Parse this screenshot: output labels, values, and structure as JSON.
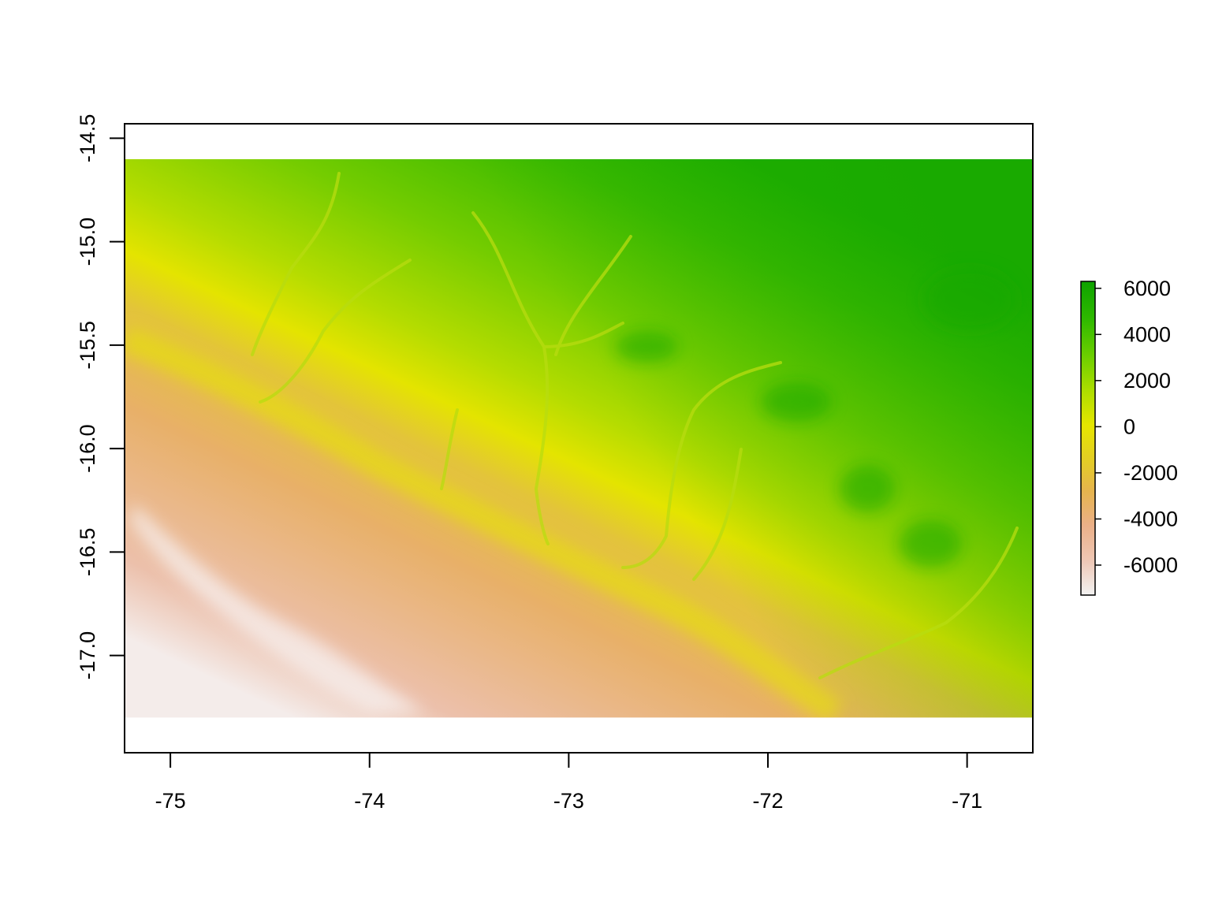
{
  "map": {
    "type": "raster-elevation",
    "x_axis": {
      "ticks": [
        -75,
        -74,
        -73,
        -72,
        -71
      ],
      "tick_labels": [
        "-75",
        "-74",
        "-73",
        "-72",
        "-71"
      ],
      "range": [
        -75.23,
        -70.67
      ]
    },
    "y_axis": {
      "ticks": [
        -14.5,
        -15.0,
        -15.5,
        -16.0,
        -16.5,
        -17.0
      ],
      "tick_labels": [
        "-14.5",
        "-15.0",
        "-15.5",
        "-16.0",
        "-16.5",
        "-17.0"
      ],
      "range": [
        -17.47,
        -14.43
      ]
    },
    "raster_extent": {
      "x": [
        -75.23,
        -70.67
      ],
      "y": [
        -17.3,
        -14.6
      ]
    },
    "legend": {
      "placement": "right",
      "range": [
        -7300,
        6300
      ],
      "ticks": [
        6000,
        4000,
        2000,
        0,
        -2000,
        -4000,
        -6000
      ],
      "tick_labels": [
        "6000",
        "4000",
        "2000",
        "0",
        "-2000",
        "-4000",
        "-6000"
      ],
      "colors": [
        "#f2f2f2",
        "#eec7b5",
        "#ebb089",
        "#e6b44e",
        "#e4cd25",
        "#e6e600",
        "#aede00",
        "#6dcf00",
        "#2eb900",
        "#0ea300"
      ]
    },
    "grid": false
  }
}
